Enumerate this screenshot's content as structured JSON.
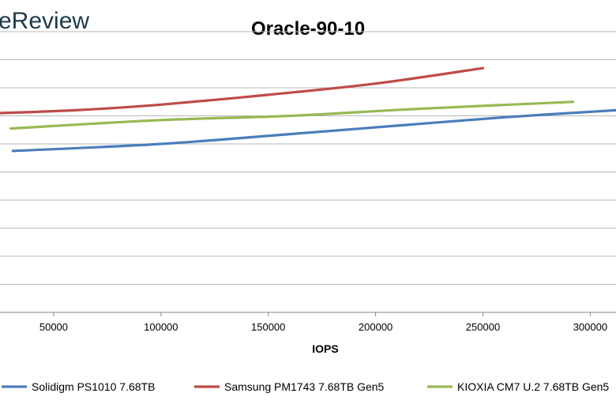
{
  "brand": {
    "text": "eReview"
  },
  "chart_data": {
    "type": "line",
    "title": "Oracle-90-10",
    "xlabel": "IOPS",
    "ylabel": "",
    "xlim": [
      25000,
      312000
    ],
    "ylim": [
      0,
      10
    ],
    "x_ticks": [
      50000,
      100000,
      150000,
      200000,
      250000,
      300000
    ],
    "x_tick_labels": [
      "50000",
      "100000",
      "150000",
      "200000",
      "250000",
      "300000"
    ],
    "y_gridlines": [
      0,
      1,
      2,
      3,
      4,
      5,
      6,
      7,
      8,
      9,
      10
    ],
    "y_tick_labels_visible": false,
    "grid": true,
    "legend_position": "bottom",
    "series": [
      {
        "name": "Solidigm PS1010 7.68TB",
        "color": "#4a7ebb",
        "x": [
          31000,
          100000,
          160000,
          210000,
          260000,
          312000
        ],
        "y": [
          5.75,
          6.0,
          6.35,
          6.65,
          6.95,
          7.2
        ]
      },
      {
        "name": "Samsung PM1743 7.68TB Gen5",
        "color": "#be4b48",
        "x": [
          25000,
          60000,
          100000,
          150000,
          200000,
          250000
        ],
        "y": [
          7.1,
          7.2,
          7.4,
          7.75,
          8.15,
          8.7
        ]
      },
      {
        "name": "KIOXIA CM7 U.2 7.68TB Gen5",
        "color": "#98b954",
        "x": [
          30000,
          100000,
          160000,
          220000,
          292000
        ],
        "y": [
          6.55,
          6.85,
          7.0,
          7.25,
          7.5
        ]
      }
    ]
  }
}
